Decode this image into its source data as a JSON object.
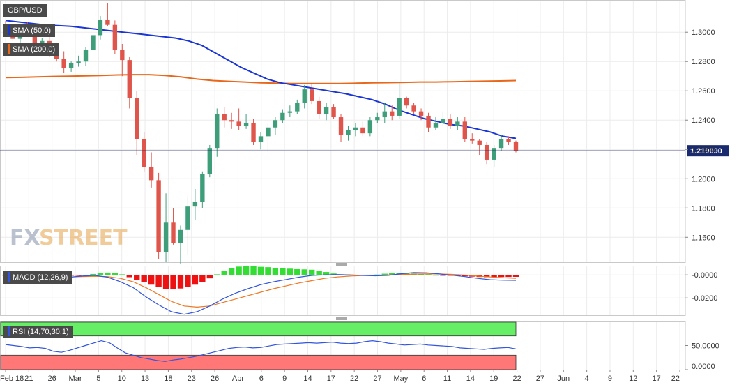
{
  "instrument": "GBP/USD",
  "last_price": "1.219090",
  "watermark": {
    "fx": "FX",
    "street": "STREET"
  },
  "indicators": {
    "sma50": "SMA (50,0)",
    "sma200": "SMA (200,0)",
    "macd": "MACD (12,26,9)",
    "rsi": "RSI (14,70,30,1)"
  },
  "colors": {
    "up": "#3e9e7a",
    "down": "#e0554b",
    "sma50": "#1a35d6",
    "sma200": "#e8671a",
    "macd_pos": "#33dd33",
    "macd_neg": "#ee1111",
    "macd_line": "#3355dd",
    "macd_signal": "#ee7722",
    "rsi_line": "#3355dd",
    "rsi_ob": "#66ee66",
    "rsi_os": "#ff7777",
    "price_line": "#1f2a66",
    "label_bg": "#1a2a6e"
  },
  "chart_data": [
    {
      "type": "candlestick",
      "title": "GBP/USD",
      "ylim": [
        1.143,
        1.322
      ],
      "y_ticks": [
        "1.3000",
        "1.2800",
        "1.2600",
        "1.2400",
        "1.2200",
        "1.2000",
        "1.1800",
        "1.1600"
      ],
      "x_tick_labels": [
        "Feb 18",
        "21",
        "26",
        "Mar",
        "5",
        "10",
        "13",
        "18",
        "23",
        "26",
        "Apr",
        "6",
        "9",
        "14",
        "17",
        "22",
        "27",
        "May",
        "6",
        "11",
        "14",
        "19",
        "22",
        "27",
        "Jun",
        "4",
        "9",
        "12",
        "17",
        "22"
      ],
      "current_price": 1.21909,
      "ohlc": [
        [
          1.3045,
          1.3078,
          1.2981,
          1.3008
        ],
        [
          1.3008,
          1.3031,
          1.294,
          1.2955
        ],
        [
          1.2955,
          1.3058,
          1.293,
          1.304
        ],
        [
          1.304,
          1.307,
          1.299,
          1.301
        ],
        [
          1.301,
          1.303,
          1.284,
          1.289
        ],
        [
          1.289,
          1.296,
          1.287,
          1.294
        ],
        [
          1.294,
          1.298,
          1.283,
          1.286
        ],
        [
          1.286,
          1.289,
          1.28,
          1.282
        ],
        [
          1.282,
          1.287,
          1.272,
          1.2755
        ],
        [
          1.2755,
          1.28,
          1.273,
          1.279
        ],
        [
          1.279,
          1.284,
          1.2765,
          1.28
        ],
        [
          1.28,
          1.29,
          1.277,
          1.288
        ],
        [
          1.288,
          1.3,
          1.286,
          1.298
        ],
        [
          1.298,
          1.311,
          1.295,
          1.3085
        ],
        [
          1.3085,
          1.32,
          1.304,
          1.305
        ],
        [
          1.305,
          1.308,
          1.285,
          1.288
        ],
        [
          1.288,
          1.292,
          1.27,
          1.281
        ],
        [
          1.281,
          1.283,
          1.248,
          1.255
        ],
        [
          1.255,
          1.26,
          1.216,
          1.227
        ],
        [
          1.227,
          1.232,
          1.205,
          1.208
        ],
        [
          1.208,
          1.218,
          1.194,
          1.199
        ],
        [
          1.199,
          1.204,
          1.145,
          1.15
        ],
        [
          1.15,
          1.19,
          1.143,
          1.17
        ],
        [
          1.17,
          1.18,
          1.155,
          1.156
        ],
        [
          1.156,
          1.168,
          1.142,
          1.165
        ],
        [
          1.165,
          1.188,
          1.148,
          1.181
        ],
        [
          1.181,
          1.193,
          1.172,
          1.184
        ],
        [
          1.184,
          1.205,
          1.18,
          1.203
        ],
        [
          1.203,
          1.223,
          1.201,
          1.221
        ],
        [
          1.221,
          1.248,
          1.215,
          1.244
        ],
        [
          1.244,
          1.249,
          1.235,
          1.24
        ],
        [
          1.24,
          1.245,
          1.234,
          1.239
        ],
        [
          1.239,
          1.248,
          1.233,
          1.236
        ],
        [
          1.236,
          1.244,
          1.234,
          1.238
        ],
        [
          1.238,
          1.241,
          1.223,
          1.225
        ],
        [
          1.225,
          1.232,
          1.22,
          1.229
        ],
        [
          1.229,
          1.238,
          1.218,
          1.235
        ],
        [
          1.235,
          1.242,
          1.23,
          1.24
        ],
        [
          1.24,
          1.247,
          1.238,
          1.245
        ],
        [
          1.245,
          1.25,
          1.242,
          1.246
        ],
        [
          1.246,
          1.254,
          1.244,
          1.252
        ],
        [
          1.252,
          1.264,
          1.248,
          1.261
        ],
        [
          1.261,
          1.265,
          1.251,
          1.253
        ],
        [
          1.253,
          1.256,
          1.241,
          1.244
        ],
        [
          1.244,
          1.252,
          1.24,
          1.249
        ],
        [
          1.249,
          1.251,
          1.241,
          1.242
        ],
        [
          1.242,
          1.244,
          1.225,
          1.23
        ],
        [
          1.23,
          1.236,
          1.226,
          1.233
        ],
        [
          1.233,
          1.238,
          1.229,
          1.235
        ],
        [
          1.235,
          1.239,
          1.229,
          1.231
        ],
        [
          1.231,
          1.242,
          1.229,
          1.24
        ],
        [
          1.24,
          1.245,
          1.238,
          1.242
        ],
        [
          1.242,
          1.252,
          1.238,
          1.246
        ],
        [
          1.246,
          1.25,
          1.24,
          1.243
        ],
        [
          1.243,
          1.266,
          1.241,
          1.255
        ],
        [
          1.255,
          1.256,
          1.248,
          1.25
        ],
        [
          1.25,
          1.252,
          1.244,
          1.246
        ],
        [
          1.246,
          1.248,
          1.24,
          1.243
        ],
        [
          1.243,
          1.245,
          1.232,
          1.235
        ],
        [
          1.235,
          1.242,
          1.233,
          1.238
        ],
        [
          1.238,
          1.246,
          1.236,
          1.241
        ],
        [
          1.241,
          1.244,
          1.234,
          1.236
        ],
        [
          1.236,
          1.242,
          1.233,
          1.239
        ],
        [
          1.239,
          1.242,
          1.225,
          1.227
        ],
        [
          1.227,
          1.231,
          1.224,
          1.226
        ],
        [
          1.226,
          1.227,
          1.216,
          1.223
        ],
        [
          1.223,
          1.225,
          1.21,
          1.213
        ],
        [
          1.213,
          1.223,
          1.208,
          1.221
        ],
        [
          1.221,
          1.23,
          1.219,
          1.227
        ],
        [
          1.227,
          1.229,
          1.223,
          1.225
        ],
        [
          1.225,
          1.226,
          1.218,
          1.2191
        ]
      ],
      "sma50": [
        1.308,
        1.307,
        1.306,
        1.305,
        1.3045,
        1.304,
        1.303,
        1.302,
        1.301,
        1.3,
        1.299,
        1.298,
        1.297,
        1.296,
        1.294,
        1.291,
        1.286,
        1.281,
        1.276,
        1.272,
        1.268,
        1.2655,
        1.264,
        1.2625,
        1.261,
        1.2595,
        1.258,
        1.256,
        1.254,
        1.251,
        1.247,
        1.244,
        1.241,
        1.239,
        1.237,
        1.236,
        1.234,
        1.232,
        1.229,
        1.2275
      ],
      "sma200": [
        1.269,
        1.2692,
        1.2695,
        1.2698,
        1.27,
        1.2702,
        1.2705,
        1.2708,
        1.271,
        1.271,
        1.2705,
        1.2695,
        1.268,
        1.267,
        1.2665,
        1.266,
        1.2655,
        1.2652,
        1.265,
        1.265,
        1.265,
        1.265,
        1.2652,
        1.2655,
        1.2656,
        1.2658,
        1.266,
        1.266,
        1.2662,
        1.2664,
        1.2666,
        1.2668,
        1.267
      ]
    },
    {
      "type": "bar",
      "title": "MACD (12,26,9)",
      "ylim": [
        -0.035,
        0.008
      ],
      "y_ticks": [
        "-0.0000",
        "-0.0200"
      ],
      "histogram": [
        -0.001,
        -0.0012,
        -0.0015,
        -0.0014,
        -0.0012,
        -0.001,
        -0.0008,
        -0.001,
        -0.0008,
        -0.0006,
        -0.0004,
        0.0,
        0.0008,
        0.0015,
        0.002,
        0.0014,
        0.0005,
        -0.002,
        -0.0045,
        -0.0065,
        -0.0085,
        -0.0105,
        -0.012,
        -0.0125,
        -0.0118,
        -0.0105,
        -0.0085,
        -0.006,
        -0.003,
        0.0005,
        0.0035,
        0.0058,
        0.0072,
        0.0078,
        0.0076,
        0.007,
        0.0067,
        0.006,
        0.0058,
        0.0054,
        0.005,
        0.0048,
        0.0045,
        0.0035,
        0.0025,
        0.0012,
        0.0005,
        0.0002,
        0.0001,
        0.0,
        0.0001,
        0.0003,
        0.001,
        0.0015,
        0.0017,
        0.0015,
        0.0012,
        0.0008,
        0.0005,
        0.0001,
        -0.0003,
        -0.0005,
        -0.0008,
        -0.0012,
        -0.0015,
        -0.0018,
        -0.002,
        -0.0019,
        -0.0018,
        -0.0018,
        -0.0017
      ],
      "macd_line": [
        -0.0015,
        -0.002,
        -0.0025,
        -0.003,
        -0.0028,
        -0.002,
        -0.001,
        -0.0005,
        -0.002,
        -0.006,
        -0.011,
        -0.019,
        -0.026,
        -0.032,
        -0.0342,
        -0.032,
        -0.027,
        -0.021,
        -0.016,
        -0.012,
        -0.0085,
        -0.006,
        -0.004,
        -0.002,
        -0.0005,
        0.0,
        0.0003,
        0.0,
        -0.0005,
        -0.0008,
        -0.0004,
        0.001,
        0.002,
        0.0018,
        0.0008,
        -0.0003,
        -0.0015,
        -0.003,
        -0.0042,
        -0.0046,
        -0.0047
      ],
      "signal_line": [
        -0.001,
        -0.0012,
        -0.0015,
        -0.0018,
        -0.002,
        -0.0019,
        -0.0015,
        -0.0012,
        -0.0015,
        -0.003,
        -0.006,
        -0.011,
        -0.017,
        -0.023,
        -0.027,
        -0.028,
        -0.027,
        -0.024,
        -0.021,
        -0.018,
        -0.015,
        -0.012,
        -0.0095,
        -0.007,
        -0.005,
        -0.003,
        -0.0018,
        -0.001,
        -0.0005,
        -0.0003,
        0.0,
        0.0003,
        0.0007,
        0.0009,
        0.0008,
        0.0004,
        -0.0002,
        -0.001,
        -0.0018,
        -0.0025,
        -0.003
      ]
    },
    {
      "type": "line",
      "title": "RSI (14,70,30,1)",
      "ylim": [
        0,
        100
      ],
      "y_ticks": [
        "50.0000",
        "0.0000"
      ],
      "overbought": 70,
      "oversold": 30,
      "rsi": [
        52,
        50,
        48,
        45,
        46,
        44,
        38,
        36,
        40,
        45,
        50,
        55,
        60,
        56,
        45,
        35,
        30,
        25,
        22,
        19,
        17,
        20,
        22,
        25,
        28,
        32,
        36,
        40,
        44,
        46,
        47,
        45,
        46,
        49,
        52,
        53,
        54,
        55,
        56,
        55,
        56,
        57,
        55,
        54,
        55,
        58,
        60,
        58,
        55,
        53,
        51,
        52,
        53,
        51,
        50,
        49,
        48,
        45,
        44,
        43,
        42,
        44,
        45,
        46,
        43
      ]
    }
  ]
}
